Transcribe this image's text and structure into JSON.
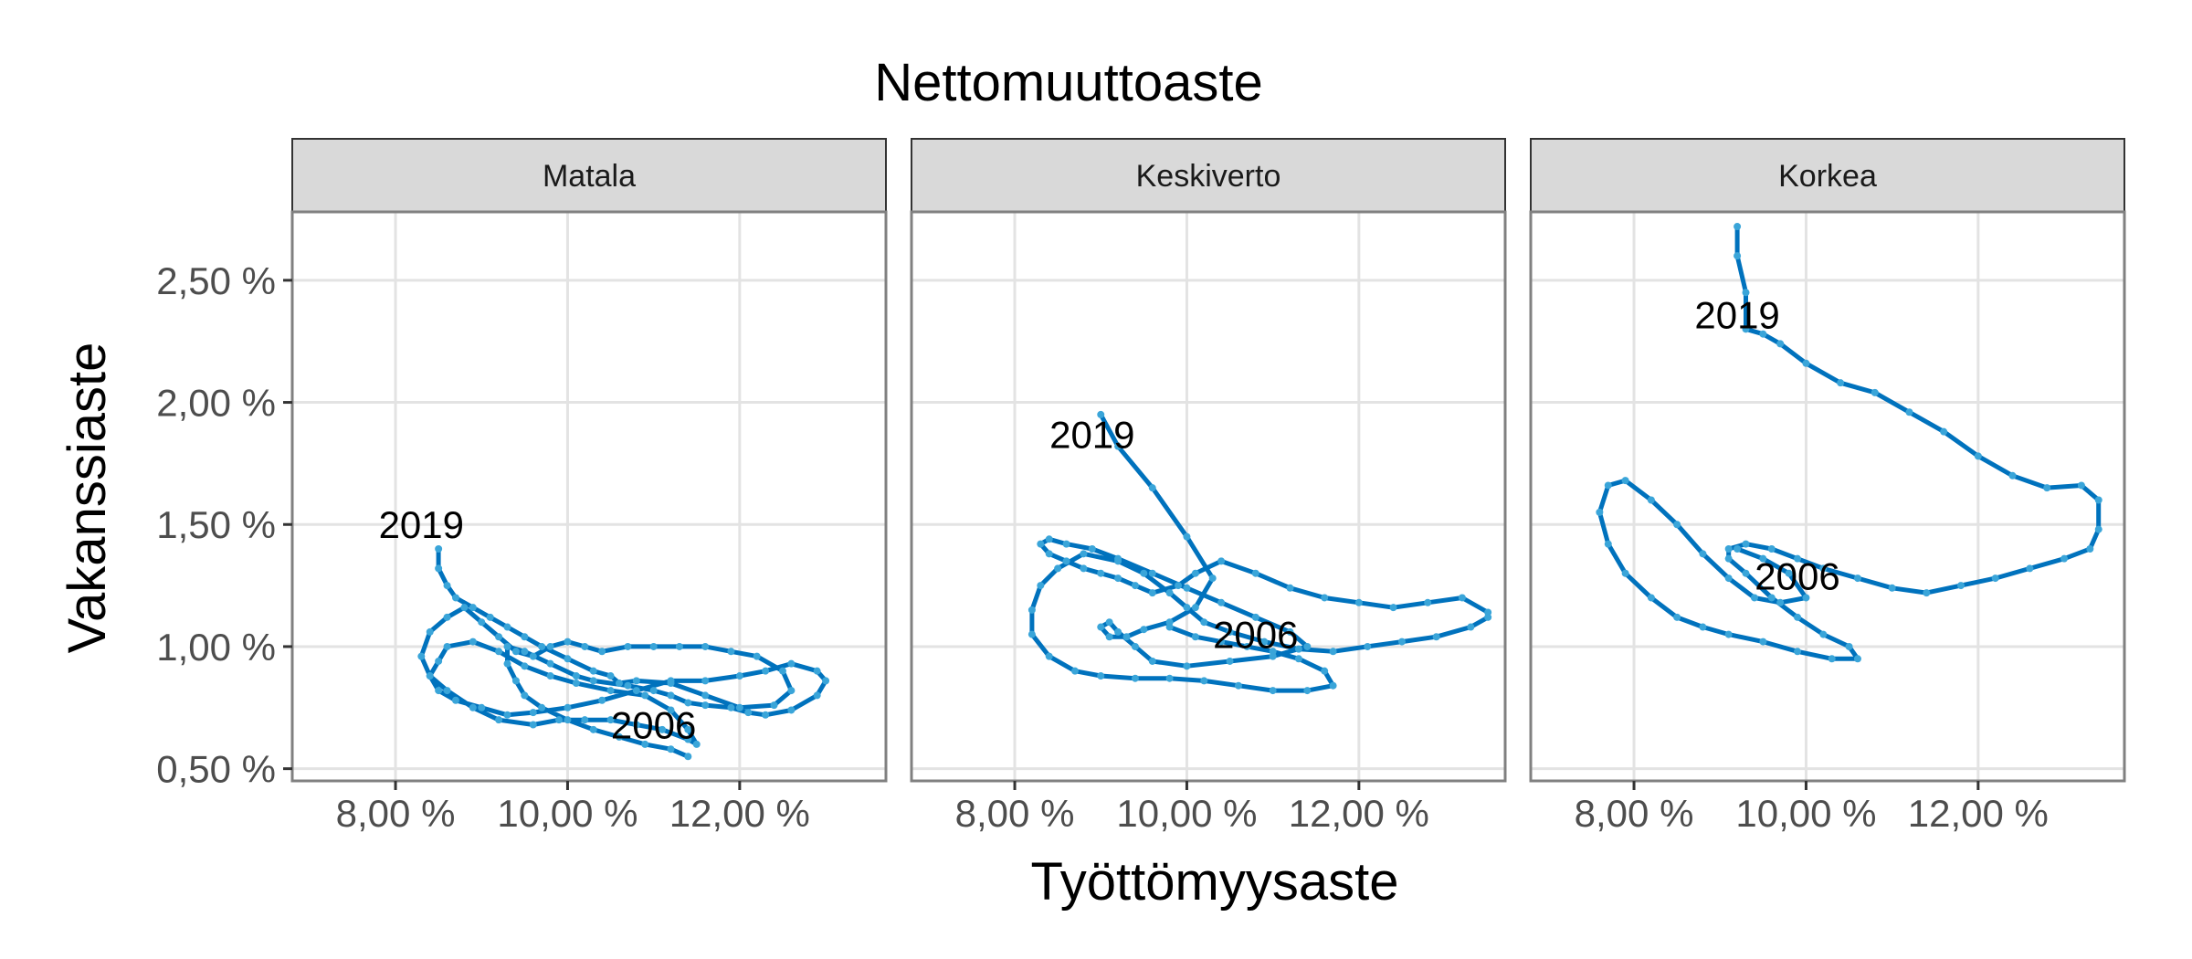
{
  "title": "Nettomuuttoaste",
  "colors": {
    "line": "#0072bd",
    "point": "#3aa5d9"
  },
  "chart_data": {
    "type": "line",
    "title": "Nettomuuttoaste",
    "xlabel": "Työttömyysaste",
    "ylabel": "Vakanssiaste",
    "xlim": [
      6.8,
      13.7
    ],
    "ylim": [
      0.45,
      2.78
    ],
    "x_ticks": [
      8,
      10,
      12
    ],
    "x_tick_labels": [
      "8,00 %",
      "10,00 %",
      "12,00 %"
    ],
    "y_ticks": [
      0.5,
      1.0,
      1.5,
      2.0,
      2.5
    ],
    "y_tick_labels": [
      "0,50 %",
      "1,00 %",
      "1,50 %",
      "2,00 %",
      "2,50 %"
    ],
    "grid": true,
    "legend": "none",
    "panels": [
      {
        "label": "Matala",
        "annotations": [
          {
            "text": "2019",
            "x": 8.3,
            "y": 1.5
          },
          {
            "text": "2006",
            "x": 11.0,
            "y": 0.68
          }
        ],
        "series": [
          {
            "x": [
              11.4,
              11.2,
              10.9,
              10.6,
              10.3,
              10.0,
              9.7,
              9.5,
              9.4,
              9.3,
              9.3,
              9.5,
              9.8,
              10.1,
              10.3,
              10.7,
              11.0,
              11.2,
              11.4,
              11.6,
              11.9,
              12.1,
              12.3,
              12.6,
              12.9,
              13.0,
              12.9,
              12.6,
              12.3,
              12.0,
              11.6,
              11.2,
              10.8,
              10.4,
              10.0,
              9.6,
              9.3,
              9.0,
              8.7,
              8.5,
              8.4,
              8.5,
              8.6,
              8.9,
              9.2,
              9.5,
              9.8,
              10.1,
              10.5,
              10.9,
              11.2,
              11.4,
              11.5,
              11.4,
              11.1,
              10.8,
              10.5,
              10.2,
              9.9,
              9.6,
              9.2,
              8.9,
              8.6,
              8.4,
              8.3,
              8.4,
              8.6,
              8.8,
              9.0,
              9.2,
              9.4,
              9.6,
              9.8,
              10.0,
              10.2,
              10.4,
              10.7,
              11.0,
              11.3,
              11.6,
              11.9,
              12.2,
              12.5,
              12.6,
              12.4,
              12.0,
              11.6,
              11.2,
              10.8,
              10.6,
              10.5,
              10.3,
              10.0,
              9.7,
              9.5,
              9.3,
              9.1,
              8.9,
              8.7,
              8.6,
              8.5,
              8.5
            ],
            "y": [
              0.55,
              0.58,
              0.6,
              0.63,
              0.66,
              0.7,
              0.75,
              0.8,
              0.86,
              0.93,
              1.0,
              0.98,
              0.93,
              0.88,
              0.86,
              0.84,
              0.82,
              0.8,
              0.77,
              0.76,
              0.75,
              0.73,
              0.72,
              0.74,
              0.8,
              0.86,
              0.9,
              0.93,
              0.9,
              0.88,
              0.86,
              0.86,
              0.82,
              0.78,
              0.75,
              0.73,
              0.72,
              0.75,
              0.78,
              0.82,
              0.88,
              0.94,
              1.0,
              1.02,
              0.98,
              0.92,
              0.88,
              0.85,
              0.82,
              0.8,
              0.74,
              0.66,
              0.6,
              0.62,
              0.66,
              0.68,
              0.7,
              0.7,
              0.7,
              0.68,
              0.7,
              0.75,
              0.82,
              0.88,
              0.96,
              1.06,
              1.12,
              1.16,
              1.1,
              1.04,
              0.98,
              0.96,
              1.0,
              1.02,
              1.0,
              0.98,
              1.0,
              1.0,
              1.0,
              1.0,
              0.98,
              0.96,
              0.9,
              0.82,
              0.76,
              0.75,
              0.8,
              0.85,
              0.86,
              0.85,
              0.88,
              0.9,
              0.95,
              1.0,
              1.04,
              1.08,
              1.12,
              1.16,
              1.2,
              1.25,
              1.32,
              1.4
            ]
          }
        ]
      },
      {
        "label": "Keskiverto",
        "annotations": [
          {
            "text": "2019",
            "x": 8.9,
            "y": 1.87
          },
          {
            "text": "2006",
            "x": 10.8,
            "y": 1.05
          }
        ],
        "series": [
          {
            "x": [
              9.8,
              10.1,
              10.4,
              10.7,
              11.0,
              11.3,
              11.6,
              11.7,
              11.4,
              11.0,
              10.6,
              10.2,
              9.8,
              9.4,
              9.0,
              8.7,
              8.4,
              8.2,
              8.2,
              8.3,
              8.5,
              8.8,
              9.2,
              9.5,
              9.8,
              10.0,
              10.2,
              10.5,
              10.9,
              11.3,
              11.7,
              12.1,
              12.5,
              12.9,
              13.3,
              13.5,
              13.5,
              13.2,
              12.8,
              12.4,
              12.0,
              11.6,
              11.2,
              10.8,
              10.4,
              10.1,
              9.9,
              9.6,
              9.4,
              9.2,
              9.0,
              8.8,
              8.6,
              8.4,
              8.3,
              8.4,
              8.6,
              8.9,
              9.2,
              9.6,
              10.0,
              10.4,
              10.8,
              11.2,
              11.4,
              11.0,
              10.5,
              10.0,
              9.6,
              9.4,
              9.2,
              9.1,
              9.0,
              9.1,
              9.3,
              9.5,
              9.8,
              10.1,
              10.3,
              10.0,
              9.6,
              9.2,
              9.0
            ],
            "y": [
              1.08,
              1.04,
              1.02,
              1.0,
              0.98,
              0.95,
              0.9,
              0.84,
              0.82,
              0.82,
              0.84,
              0.86,
              0.87,
              0.87,
              0.88,
              0.9,
              0.96,
              1.05,
              1.15,
              1.25,
              1.32,
              1.38,
              1.35,
              1.3,
              1.22,
              1.16,
              1.1,
              1.06,
              1.02,
              0.99,
              0.98,
              1.0,
              1.02,
              1.04,
              1.08,
              1.12,
              1.14,
              1.2,
              1.18,
              1.16,
              1.18,
              1.2,
              1.24,
              1.3,
              1.35,
              1.3,
              1.25,
              1.22,
              1.25,
              1.28,
              1.3,
              1.32,
              1.35,
              1.38,
              1.42,
              1.44,
              1.42,
              1.4,
              1.36,
              1.3,
              1.24,
              1.18,
              1.12,
              1.06,
              1.0,
              0.96,
              0.94,
              0.92,
              0.94,
              1.0,
              1.06,
              1.1,
              1.08,
              1.04,
              1.04,
              1.07,
              1.1,
              1.16,
              1.28,
              1.45,
              1.65,
              1.82,
              1.95
            ]
          }
        ]
      },
      {
        "label": "Korkea",
        "annotations": [
          {
            "text": "2019",
            "x": 9.2,
            "y": 2.36
          },
          {
            "text": "2006",
            "x": 9.9,
            "y": 1.29
          }
        ],
        "series": [
          {
            "x": [
              9.2,
              9.5,
              9.8,
              10.0,
              9.7,
              9.4,
              9.1,
              8.8,
              8.5,
              8.2,
              7.9,
              7.7,
              7.6,
              7.7,
              7.9,
              8.2,
              8.5,
              8.8,
              9.1,
              9.5,
              9.9,
              10.3,
              10.6,
              10.5,
              10.2,
              9.9,
              9.6,
              9.3,
              9.1,
              9.1,
              9.3,
              9.6,
              9.9,
              10.2,
              10.6,
              11.0,
              11.4,
              11.8,
              12.2,
              12.6,
              13.0,
              13.3,
              13.4,
              13.4,
              13.2,
              12.8,
              12.4,
              12.0,
              11.6,
              11.2,
              10.8,
              10.4,
              10.0,
              9.7,
              9.5,
              9.3,
              9.3,
              9.2,
              9.2
            ],
            "y": [
              1.4,
              1.36,
              1.3,
              1.2,
              1.18,
              1.2,
              1.28,
              1.38,
              1.5,
              1.6,
              1.68,
              1.66,
              1.55,
              1.42,
              1.3,
              1.2,
              1.12,
              1.08,
              1.05,
              1.02,
              0.98,
              0.95,
              0.95,
              1.0,
              1.05,
              1.12,
              1.2,
              1.3,
              1.36,
              1.4,
              1.42,
              1.4,
              1.36,
              1.32,
              1.28,
              1.24,
              1.22,
              1.25,
              1.28,
              1.32,
              1.36,
              1.4,
              1.48,
              1.6,
              1.66,
              1.65,
              1.7,
              1.78,
              1.88,
              1.96,
              2.04,
              2.08,
              2.16,
              2.24,
              2.28,
              2.3,
              2.45,
              2.6,
              2.72
            ]
          }
        ]
      }
    ]
  }
}
